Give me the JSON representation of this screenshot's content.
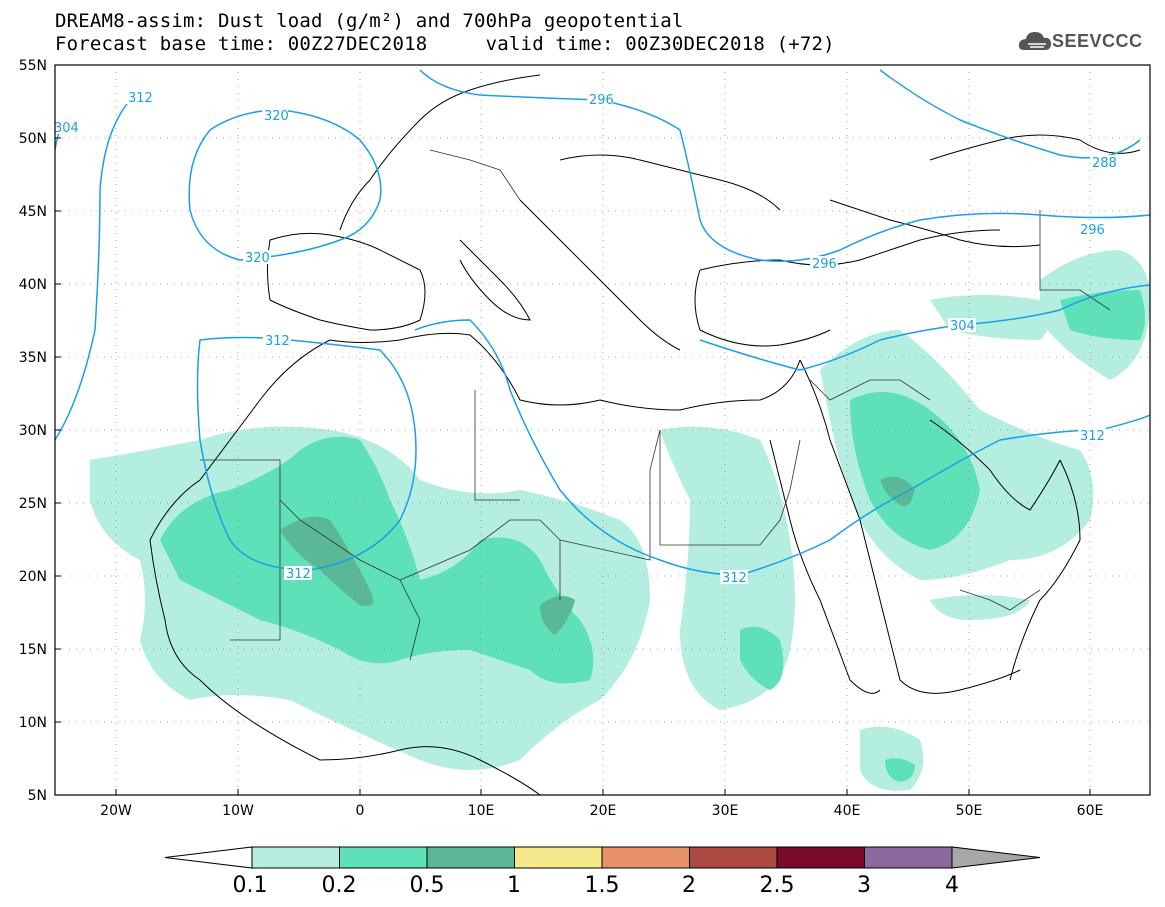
{
  "header": {
    "title_line1": "DREAM8-assim: Dust load (g/m²) and 700hPa geopotential",
    "title_line2": "Forecast base time: 00Z27DEC2018     valid time: 00Z30DEC2018 (+72)",
    "logo_text": "SEEVCCC"
  },
  "map": {
    "lon_range": [
      -25,
      65
    ],
    "lat_range": [
      5,
      55
    ],
    "lat_labels": [
      "55N",
      "50N",
      "45N",
      "40N",
      "35N",
      "30N",
      "25N",
      "20N",
      "15N",
      "10N",
      "5N"
    ],
    "lon_labels": [
      "20W",
      "10W",
      "0",
      "10E",
      "20E",
      "30E",
      "40E",
      "50E",
      "60E"
    ],
    "contour_color": "#1a9fe8",
    "contour_labels": [
      "312",
      "304",
      "320",
      "296",
      "320",
      "312",
      "296",
      "288",
      "296",
      "304",
      "312",
      "312"
    ]
  },
  "colorbar": {
    "levels": [
      "0.1",
      "0.2",
      "0.5",
      "1",
      "1.5",
      "2",
      "2.5",
      "3",
      "4"
    ],
    "colors": [
      "#b3eee0",
      "#5ee0b8",
      "#5ab896",
      "#f4ea8a",
      "#e9926a",
      "#ab4a42",
      "#7a0a2a",
      "#8c6aa0"
    ],
    "under_color": "#ffffff",
    "over_color": "#a8a8a8"
  }
}
